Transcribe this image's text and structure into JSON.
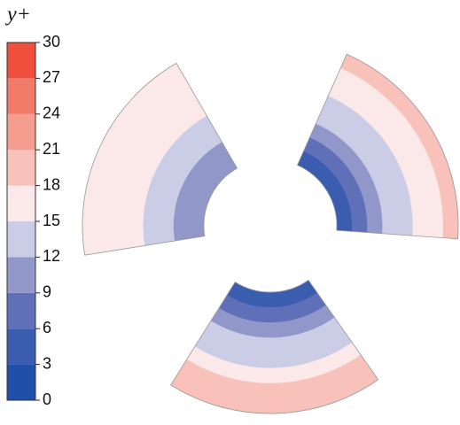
{
  "chart_data": {
    "type": "contour",
    "title": "y+",
    "ylim": [
      0,
      30
    ],
    "yticks": [
      0,
      3,
      6,
      9,
      12,
      15,
      18,
      21,
      24,
      27,
      30
    ],
    "colors": [
      "#1f4fa6",
      "#3b5db0",
      "#5f6fb8",
      "#9198c9",
      "#cbcde6",
      "#fbe8e8",
      "#f8c2ba",
      "#f59e90",
      "#f27a68",
      "#ef4f3c"
    ]
  }
}
